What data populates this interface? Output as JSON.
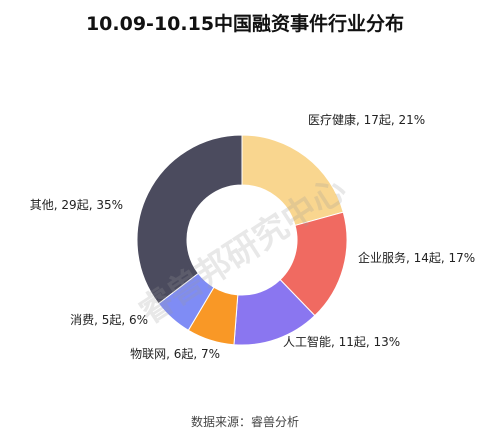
{
  "chart_data": {
    "type": "pie",
    "variant": "donut",
    "title": "10.09-10.15中国融资事件行业分布",
    "source": "数据来源：睿兽分析",
    "watermark": "睿兽邦研究中心",
    "slices": [
      {
        "name": "医疗健康",
        "value": 17,
        "percent": 21,
        "label": "医疗健康, 17起, 21%",
        "color": "#f9d68f"
      },
      {
        "name": "企业服务",
        "value": 14,
        "percent": 17,
        "label": "企业服务, 14起, 17%",
        "color": "#f06a61"
      },
      {
        "name": "人工智能",
        "value": 11,
        "percent": 13,
        "label": "人工智能, 11起, 13%",
        "color": "#8a76f0"
      },
      {
        "name": "物联网",
        "value": 6,
        "percent": 7,
        "label": "物联网, 6起, 7%",
        "color": "#f99826"
      },
      {
        "name": "消费",
        "value": 5,
        "percent": 6,
        "label": "消费, 5起, 6%",
        "color": "#7f8cf5"
      },
      {
        "name": "其他",
        "value": 29,
        "percent": 35,
        "label": "其他, 29起, 35%",
        "color": "#4b4b5e"
      }
    ]
  }
}
